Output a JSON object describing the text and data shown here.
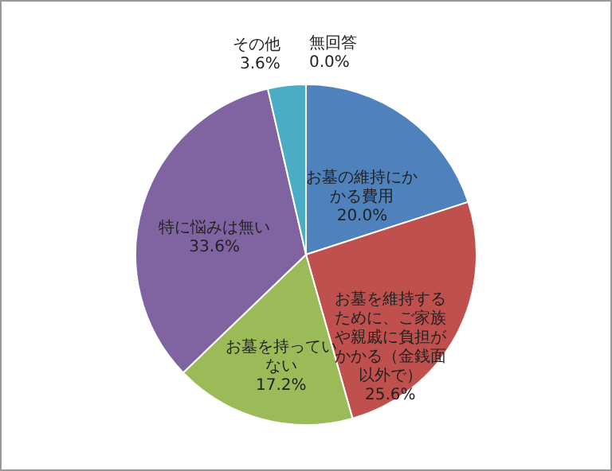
{
  "chart_data": {
    "type": "pie",
    "categories": [
      "お墓の維持にかかる費用",
      "お墓を維持するために、ご家族や親戚に負担がかかる（金銭面以外で）",
      "お墓を持っていない",
      "特に悩みは無い",
      "その他",
      "無回答"
    ],
    "values": [
      20.0,
      25.6,
      17.2,
      33.6,
      3.6,
      0.0
    ],
    "colors": [
      "#4f81bd",
      "#c0504d",
      "#9bbb59",
      "#8064a2",
      "#4bacc6",
      "#f79646"
    ],
    "value_labels": [
      "20.0%",
      "25.6%",
      "17.2%",
      "33.6%",
      "3.6%",
      "0.0%"
    ]
  }
}
